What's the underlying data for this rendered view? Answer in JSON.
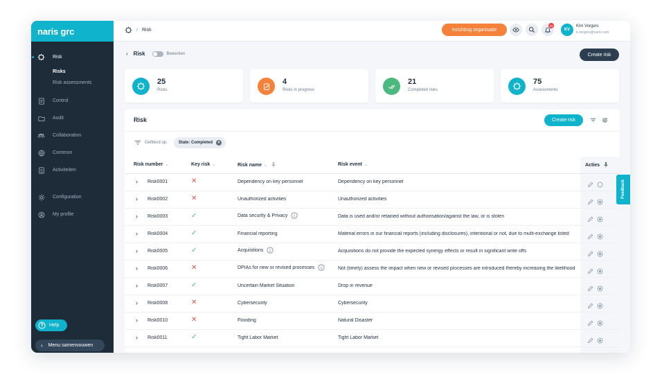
{
  "brand": "naris grc",
  "colors": {
    "accent": "#0fb3cc",
    "orange": "#f5813b",
    "sidebar": "#1e2b38",
    "green": "#4cba7f",
    "red": "#e05252"
  },
  "sidebar": {
    "items": [
      {
        "label": "Risk",
        "icon": "risk-icon",
        "active": true,
        "subitems": [
          {
            "label": "Risks",
            "active": true
          },
          {
            "label": "Risk assessments",
            "active": false
          }
        ]
      },
      {
        "label": "Control",
        "icon": "document-icon"
      },
      {
        "label": "Audit",
        "icon": "folder-icon"
      },
      {
        "label": "Collaboration",
        "icon": "users-icon"
      },
      {
        "label": "Common",
        "icon": "globe-icon"
      },
      {
        "label": "Activiteiten",
        "icon": "list-icon"
      },
      {
        "label": "Configuration",
        "icon": "gear-icon"
      },
      {
        "label": "My profile",
        "icon": "user-icon"
      }
    ],
    "help_label": "Help",
    "collapse_label": "Menu samenvouwen"
  },
  "topbar": {
    "breadcrumb": "Risk",
    "org_button": "Inrichting organisatie",
    "notification_count": "29",
    "user": {
      "initials": "KV",
      "name": "Kim Vorgers",
      "email": "k.vorgers@naris.com"
    }
  },
  "page": {
    "title": "Risk",
    "edit_toggle_label": "Bewerken",
    "create_button": "Create risk"
  },
  "stats": [
    {
      "value": "25",
      "label": "Risks",
      "color": "#0fb3cc",
      "icon": "risk-icon"
    },
    {
      "value": "4",
      "label": "Risks in progress",
      "color": "#f5813b",
      "icon": "progress-icon"
    },
    {
      "value": "21",
      "label": "Completed risks",
      "color": "#4cba7f",
      "icon": "double-check-icon"
    },
    {
      "value": "75",
      "label": "Assessments",
      "color": "#0fb3cc",
      "icon": "risk-icon"
    }
  ],
  "table": {
    "title": "Risk",
    "create_button": "Create risk",
    "filter_label": "Gefilterd op:",
    "filter_chip": "State: Completed",
    "columns": {
      "number": "Risk number",
      "key": "Key risk",
      "name": "Risk name",
      "event": "Risk event",
      "actions": "Acties"
    },
    "rows": [
      {
        "number": "Risk0001",
        "key": false,
        "name": "Dependency on key personnel",
        "info": false,
        "event": "Dependency on key personnel"
      },
      {
        "number": "Risk0002",
        "key": false,
        "name": "Unauthorized activities",
        "info": false,
        "event": "Unauthorized activities"
      },
      {
        "number": "Risk0003",
        "key": true,
        "name": "Data security & Privacy",
        "info": true,
        "event": "Data is used and/or retained without authorisation/against the law, or is stolen"
      },
      {
        "number": "Risk0004",
        "key": true,
        "name": "Financial reporting",
        "info": false,
        "event": "Material errors in our financial reports (including disclosures), intentional or not, due to multi-exchange listed"
      },
      {
        "number": "Risk0005",
        "key": true,
        "name": "Acquisitions",
        "info": true,
        "event": "Acquisitions do not provide the expected synergy effects or result in significant write offs"
      },
      {
        "number": "Risk0006",
        "key": false,
        "name": "DPIAs for new or revised processes",
        "info": true,
        "event": "Not (timely) assess the impact when new or revised processes are introduced thereby increasing the likelihood"
      },
      {
        "number": "Risk0007",
        "key": true,
        "name": "Uncertain Market Situation",
        "info": false,
        "event": "Drop in revenue"
      },
      {
        "number": "Risk0008",
        "key": false,
        "name": "Cybersecurity",
        "info": false,
        "event": "Cybersecurity"
      },
      {
        "number": "Risk0010",
        "key": false,
        "name": "Flooding",
        "info": false,
        "event": "Natural Disaster"
      },
      {
        "number": "Risk0011",
        "key": true,
        "name": "Tight Labor Market",
        "info": false,
        "event": "Tight Labor Market"
      }
    ]
  },
  "feedback_label": "Feedback"
}
